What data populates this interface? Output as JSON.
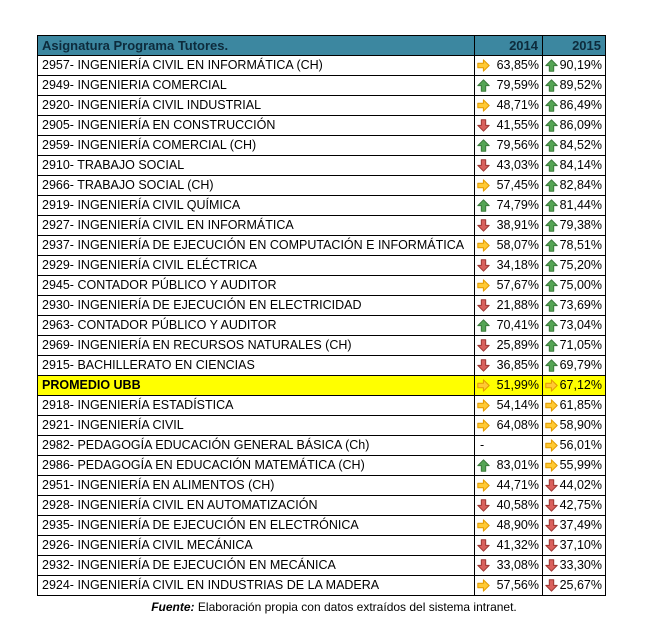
{
  "page": {
    "background": "#FFFFFF"
  },
  "colors": {
    "header_bg": "#3C87A0",
    "header_text": "#0D2B3C",
    "row_bg": "#FFFFFF",
    "highlight_bg": "#FFFF00",
    "border": "#000000",
    "text": "#000000",
    "arrow_up_fill": "#55A555",
    "arrow_up_stroke": "#3A7A3A",
    "arrow_right_fill": "#FFC933",
    "arrow_right_stroke": "#E29A00",
    "arrow_down_fill": "#D9605C",
    "arrow_down_stroke": "#9C3732"
  },
  "footer": {
    "label": "Fuente:",
    "text": "Elaboración propia con datos extraídos del sistema intranet."
  },
  "chart_data": {
    "type": "table",
    "title": "Asignatura Programa Tutores.",
    "columns": [
      {
        "key": "name",
        "label": "Asignatura Programa Tutores."
      },
      {
        "key": "y2014",
        "label": "2014"
      },
      {
        "key": "y2015",
        "label": "2015"
      }
    ],
    "icon_meaning": {
      "up": "green-up-arrow",
      "right": "yellow-right-arrow",
      "down": "red-down-arrow",
      "none": "no icon shown"
    },
    "rows": [
      {
        "name": "2957- INGENIERÍA CIVIL EN INFORMÁTICA (CH)",
        "icon2014": "right",
        "value2014": "63,85%",
        "icon2015": "up",
        "value2015": "90,19%",
        "highlight": false
      },
      {
        "name": "2949- INGENIERIA COMERCIAL",
        "icon2014": "up",
        "value2014": "79,59%",
        "icon2015": "up",
        "value2015": "89,52%",
        "highlight": false
      },
      {
        "name": "2920- INGENIERÍA CIVIL INDUSTRIAL",
        "icon2014": "right",
        "value2014": "48,71%",
        "icon2015": "up",
        "value2015": "86,49%",
        "highlight": false
      },
      {
        "name": "2905- INGENIERÍA EN CONSTRUCCIÓN",
        "icon2014": "down",
        "value2014": "41,55%",
        "icon2015": "up",
        "value2015": "86,09%",
        "highlight": false
      },
      {
        "name": "2959- INGENIERÍA COMERCIAL (CH)",
        "icon2014": "up",
        "value2014": "79,56%",
        "icon2015": "up",
        "value2015": "84,52%",
        "highlight": false
      },
      {
        "name": "2910- TRABAJO SOCIAL",
        "icon2014": "down",
        "value2014": "43,03%",
        "icon2015": "up",
        "value2015": "84,14%",
        "highlight": false
      },
      {
        "name": "2966- TRABAJO SOCIAL (CH)",
        "icon2014": "right",
        "value2014": "57,45%",
        "icon2015": "up",
        "value2015": "82,84%",
        "highlight": false
      },
      {
        "name": "2919- INGENIERÍA CIVIL QUÍMICA",
        "icon2014": "up",
        "value2014": "74,79%",
        "icon2015": "up",
        "value2015": "81,44%",
        "highlight": false
      },
      {
        "name": "2927- INGENIERÍA CIVIL EN INFORMÁTICA",
        "icon2014": "down",
        "value2014": "38,91%",
        "icon2015": "up",
        "value2015": "79,38%",
        "highlight": false
      },
      {
        "name": "2937- INGENIERÍA DE EJECUCIÓN EN COMPUTACIÓN E INFORMÁTICA",
        "icon2014": "right",
        "value2014": "58,07%",
        "icon2015": "up",
        "value2015": "78,51%",
        "highlight": false
      },
      {
        "name": "2929- INGENIERÍA CIVIL ELÉCTRICA",
        "icon2014": "down",
        "value2014": "34,18%",
        "icon2015": "up",
        "value2015": "75,20%",
        "highlight": false
      },
      {
        "name": "2945- CONTADOR PÚBLICO Y AUDITOR",
        "icon2014": "right",
        "value2014": "57,67%",
        "icon2015": "up",
        "value2015": "75,00%",
        "highlight": false
      },
      {
        "name": "2930- INGENIERÍA DE EJECUCIÓN EN ELECTRICIDAD",
        "icon2014": "down",
        "value2014": "21,88%",
        "icon2015": "up",
        "value2015": "73,69%",
        "highlight": false
      },
      {
        "name": "2963- CONTADOR PÚBLICO Y AUDITOR",
        "icon2014": "up",
        "value2014": "70,41%",
        "icon2015": "up",
        "value2015": "73,04%",
        "highlight": false
      },
      {
        "name": "2969- INGENIERÍA EN RECURSOS NATURALES (CH)",
        "icon2014": "down",
        "value2014": "25,89%",
        "icon2015": "up",
        "value2015": "71,05%",
        "highlight": false
      },
      {
        "name": "2915- BACHILLERATO EN CIENCIAS",
        "icon2014": "down",
        "value2014": "36,85%",
        "icon2015": "up",
        "value2015": "69,79%",
        "highlight": false
      },
      {
        "name": "PROMEDIO UBB",
        "icon2014": "right",
        "value2014": "51,99%",
        "icon2015": "right",
        "value2015": "67,12%",
        "highlight": true
      },
      {
        "name": "2918- INGENIERÍA ESTADÍSTICA",
        "icon2014": "right",
        "value2014": "54,14%",
        "icon2015": "right",
        "value2015": "61,85%",
        "highlight": false
      },
      {
        "name": "2921- INGENIERÍA CIVIL",
        "icon2014": "right",
        "value2014": "64,08%",
        "icon2015": "right",
        "value2015": "58,90%",
        "highlight": false
      },
      {
        "name": "2982- PEDAGOGÍA EDUCACIÓN GENERAL BÁSICA (Ch)",
        "icon2014": "none",
        "value2014": "-",
        "icon2015": "right",
        "value2015": "56,01%",
        "highlight": false
      },
      {
        "name": "2986- PEDAGOGÍA EN EDUCACIÓN MATEMÁTICA (CH)",
        "icon2014": "up",
        "value2014": "83,01%",
        "icon2015": "right",
        "value2015": "55,99%",
        "highlight": false
      },
      {
        "name": "2951- INGENIERÍA EN ALIMENTOS (CH)",
        "icon2014": "right",
        "value2014": "44,71%",
        "icon2015": "down",
        "value2015": "44,02%",
        "highlight": false
      },
      {
        "name": "2928- INGENIERÍA CIVIL EN AUTOMATIZACIÓN",
        "icon2014": "down",
        "value2014": "40,58%",
        "icon2015": "down",
        "value2015": "42,75%",
        "highlight": false
      },
      {
        "name": "2935- INGENIERÍA DE EJECUCIÓN EN ELECTRÓNICA",
        "icon2014": "right",
        "value2014": "48,90%",
        "icon2015": "down",
        "value2015": "37,49%",
        "highlight": false
      },
      {
        "name": "2926- INGENIERÍA CIVIL MECÁNICA",
        "icon2014": "down",
        "value2014": "41,32%",
        "icon2015": "down",
        "value2015": "37,10%",
        "highlight": false
      },
      {
        "name": "2932- INGENIERÍA DE EJECUCIÓN EN MECÁNICA",
        "icon2014": "down",
        "value2014": "33,08%",
        "icon2015": "down",
        "value2015": "33,30%",
        "highlight": false
      },
      {
        "name": "2924- INGENIERÍA CIVIL EN INDUSTRIAS DE LA MADERA",
        "icon2014": "right",
        "value2014": "57,56%",
        "icon2015": "down",
        "value2015": "25,67%",
        "highlight": false
      }
    ]
  }
}
